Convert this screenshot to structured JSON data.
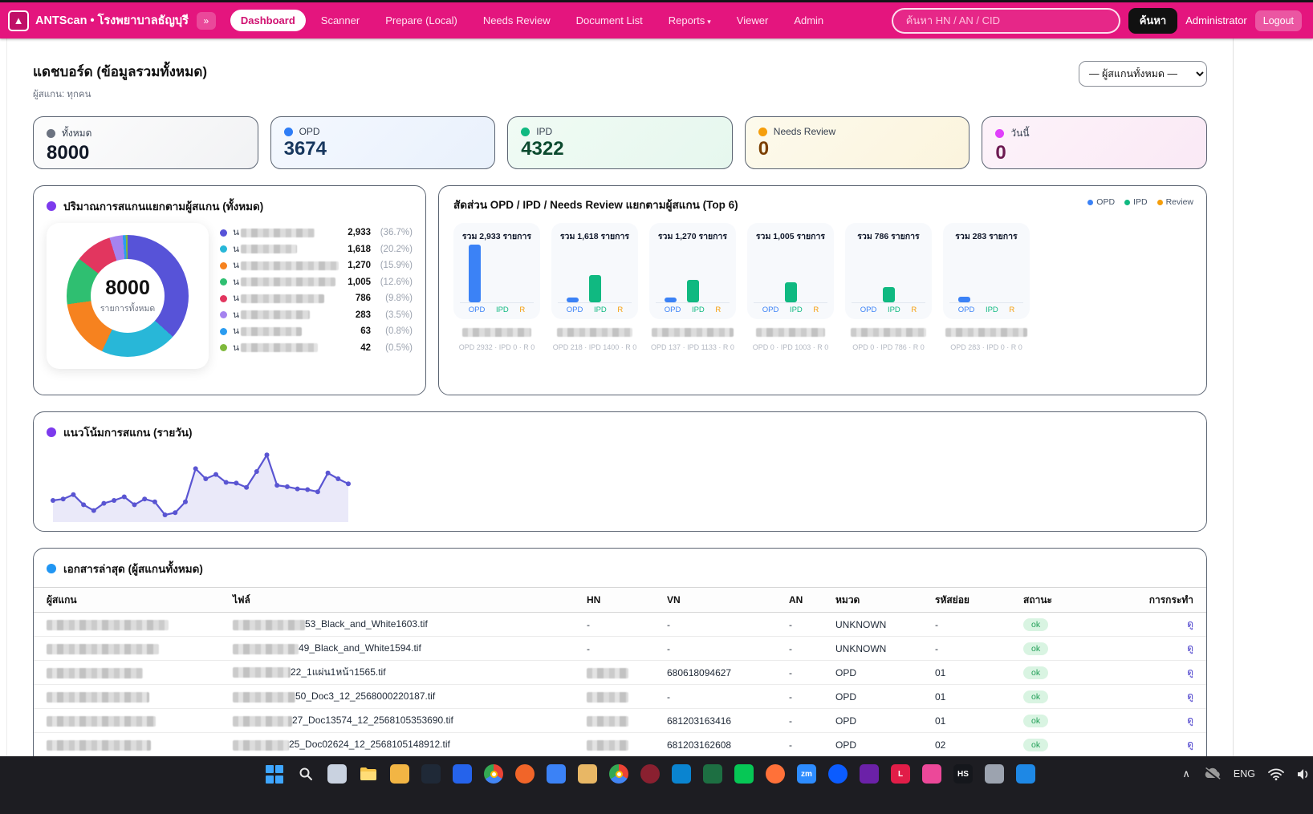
{
  "navbar": {
    "brand": "ANTScan • โรงพยาบาลธัญบุรี",
    "collapse_label": "»",
    "items": [
      {
        "label": "Dashboard",
        "active": true
      },
      {
        "label": "Scanner"
      },
      {
        "label": "Prepare (Local)"
      },
      {
        "label": "Needs Review"
      },
      {
        "label": "Document List"
      },
      {
        "label": "Reports",
        "caret": "▾"
      },
      {
        "label": "Viewer"
      },
      {
        "label": "Admin"
      }
    ],
    "search_placeholder": "ค้นหา HN / AN / CID",
    "search_button": "ค้นหา",
    "user": "Administrator",
    "logout": "Logout",
    "accent": "#e4157e"
  },
  "header": {
    "title": "แดชบอร์ด (ข้อมูลรวมทั้งหมด)",
    "subtitle": "ผู้สแกน: ทุกคน",
    "scanner_filter": "— ผู้สแกนทั้งหมด —"
  },
  "stats": [
    {
      "label": "ทั้งหมด",
      "value": "8000",
      "dot": "#6b7280",
      "value_color": "#111827"
    },
    {
      "label": "OPD",
      "value": "3674",
      "dot": "#2e7df6",
      "value_color": "#17375e"
    },
    {
      "label": "IPD",
      "value": "4322",
      "dot": "#10b981",
      "value_color": "#0c4a2f"
    },
    {
      "label": "Needs Review",
      "value": "0",
      "dot": "#f59e0b",
      "value_color": "#7b3f00"
    },
    {
      "label": "วันนี้",
      "value": "0",
      "dot": "#e040fb",
      "value_color": "#6d1b52"
    }
  ],
  "chart_data": [
    {
      "type": "pie",
      "title": "ปริมาณการสแกนแยกตามผู้สแกน (ทั้งหมด)",
      "title_dot": "#7c3aed",
      "center_value": "8000",
      "center_label": "รายการทั้งหมด",
      "legend_note": "scanner names blurred in source, all begin with น",
      "name_prefix": "น",
      "slices": [
        {
          "value": "2,933",
          "pct": 36.7,
          "pct_label": "(36.7%)",
          "color": "#5753d8",
          "name_w": 92
        },
        {
          "value": "1,618",
          "pct": 20.2,
          "pct_label": "(20.2%)",
          "color": "#28b7d8",
          "name_w": 70
        },
        {
          "value": "1,270",
          "pct": 15.9,
          "pct_label": "(15.9%)",
          "color": "#f6821f",
          "name_w": 122
        },
        {
          "value": "1,005",
          "pct": 12.6,
          "pct_label": "(12.6%)",
          "color": "#2fbf71",
          "name_w": 118
        },
        {
          "value": "786",
          "pct": 9.8,
          "pct_label": "(9.8%)",
          "color": "#e2365f",
          "name_w": 104
        },
        {
          "value": "283",
          "pct": 3.5,
          "pct_label": "(3.5%)",
          "color": "#a583ef",
          "name_w": 86
        },
        {
          "value": "63",
          "pct": 0.8,
          "pct_label": "(0.8%)",
          "color": "#2b9cf0",
          "name_w": 76
        },
        {
          "value": "42",
          "pct": 0.5,
          "pct_label": "(0.5%)",
          "color": "#7fb93c",
          "name_w": 96
        }
      ]
    },
    {
      "type": "bar",
      "title": "สัดส่วน OPD / IPD / Needs Review แยกตามผู้สแกน (Top 6)",
      "categories": [
        "OPD",
        "IPD",
        "R"
      ],
      "category_colors": [
        "#3b82f6",
        "#10b981",
        "#f59e0b"
      ],
      "legend": [
        {
          "label": "OPD",
          "color": "#3b82f6"
        },
        {
          "label": "IPD",
          "color": "#10b981"
        },
        {
          "label": "Review",
          "color": "#f59e0b"
        }
      ],
      "max_value": 2932,
      "charts": [
        {
          "total_label": "รวม 2,933 รายการ",
          "values": [
            2932,
            0,
            0
          ],
          "caption": "OPD 2932 · IPD 0 · R 0"
        },
        {
          "total_label": "รวม 1,618 รายการ",
          "values": [
            218,
            1400,
            0
          ],
          "caption": "OPD 218 · IPD 1400 · R 0"
        },
        {
          "total_label": "รวม 1,270 รายการ",
          "values": [
            137,
            1133,
            0
          ],
          "caption": "OPD 137 · IPD 1133 · R 0"
        },
        {
          "total_label": "รวม 1,005 รายการ",
          "values": [
            0,
            1003,
            0
          ],
          "caption": "OPD 0 · IPD 1003 · R 0"
        },
        {
          "total_label": "รวม 786 รายการ",
          "values": [
            0,
            786,
            0
          ],
          "caption": "OPD 0 · IPD 786 · R 0"
        },
        {
          "total_label": "รวม 283 รายการ",
          "values": [
            283,
            0,
            0
          ],
          "caption": "OPD 283 · IPD 0 · R 0"
        }
      ]
    },
    {
      "type": "line",
      "title": "แนวโน้มการสแกน (รายวัน)",
      "title_dot": "#7c3aed",
      "line_color": "#5a55d2",
      "values": [
        30,
        32,
        38,
        24,
        16,
        26,
        30,
        35,
        24,
        32,
        28,
        10,
        13,
        28,
        74,
        60,
        66,
        55,
        54,
        48,
        70,
        93,
        51,
        49,
        46,
        45,
        42,
        68,
        60,
        53
      ]
    }
  ],
  "table": {
    "title": "เอกสารล่าสุด (ผู้สแกนทั้งหมด)",
    "title_dot": "#2196f3",
    "headers": [
      "ผู้สแกน",
      "ไฟล์",
      "HN",
      "VN",
      "AN",
      "หมวด",
      "รหัสย่อย",
      "สถานะ",
      "การกระทำ"
    ],
    "rows": [
      {
        "scanner_w": 152,
        "file_prefix_w": 90,
        "file": "53_Black_and_White1603.tif",
        "hn": "-",
        "hn_redacted": false,
        "vn": "-",
        "an": "-",
        "category": "UNKNOWN",
        "subcode": "-",
        "status": "ok",
        "action": "ดู"
      },
      {
        "scanner_w": 140,
        "file_prefix_w": 82,
        "file": "49_Black_and_White1594.tif",
        "hn": "-",
        "hn_redacted": false,
        "vn": "-",
        "an": "-",
        "category": "UNKNOWN",
        "subcode": "-",
        "status": "ok",
        "action": "ดู"
      },
      {
        "scanner_w": 120,
        "file_prefix_w": 72,
        "file": "22_1แผ่น1หน้า1565.tif",
        "hn": "",
        "hn_redacted": true,
        "vn": "680618094627",
        "an": "-",
        "category": "OPD",
        "subcode": "01",
        "status": "ok",
        "action": "ดู"
      },
      {
        "scanner_w": 128,
        "file_prefix_w": 78,
        "file": "50_Doc3_12_2568000220187.tif",
        "hn": "",
        "hn_redacted": true,
        "vn": "-",
        "an": "-",
        "category": "OPD",
        "subcode": "01",
        "status": "ok",
        "action": "ดู"
      },
      {
        "scanner_w": 136,
        "file_prefix_w": 74,
        "file": "27_Doc13574_12_2568105353690.tif",
        "hn": "",
        "hn_redacted": true,
        "vn": "681203163416",
        "an": "-",
        "category": "OPD",
        "subcode": "01",
        "status": "ok",
        "action": "ดู"
      },
      {
        "scanner_w": 130,
        "file_prefix_w": 70,
        "file": "25_Doc02624_12_2568105148912.tif",
        "hn": "",
        "hn_redacted": true,
        "vn": "681203162608",
        "an": "-",
        "category": "OPD",
        "subcode": "02",
        "status": "ok",
        "action": "ดู"
      }
    ],
    "partial_row": true
  },
  "taskbar": {
    "apps": [
      "start",
      "search",
      "task-view",
      "file-explorer",
      "app-yellow",
      "app-dark-terminal",
      "app-blue-square",
      "chrome",
      "app-orange-circle",
      "app-blue-doc",
      "app-folder",
      "chrome-profile",
      "app-darkred-circle",
      "vscode",
      "excel",
      "line",
      "firefox",
      "zoom",
      "app-blue-circle",
      "app-purple",
      "app-red-l",
      "app-pink",
      "app-hs",
      "printer",
      "app-shield"
    ],
    "tray": {
      "language": "ENG"
    }
  }
}
